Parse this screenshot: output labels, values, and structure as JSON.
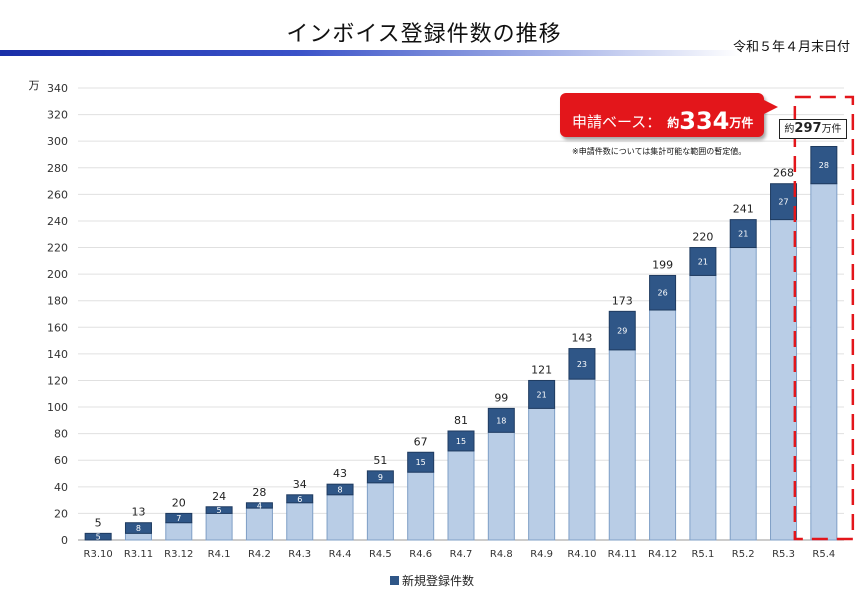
{
  "header": {
    "title": "インボイス登録件数の推移",
    "date_note": "令和５年４月末日付"
  },
  "callout": {
    "prefix": "申請ベース：",
    "approx": "約",
    "number": "334",
    "unit": "万件"
  },
  "approx_box": {
    "approx": "約",
    "number": "297",
    "unit": "万件"
  },
  "footnote": "※申請件数については集計可能な範囲の暫定値。",
  "colors": {
    "base": "#b9cde6",
    "increment": "#2f5687",
    "callout": "#e3161b",
    "highlight_dash": "#e3161b"
  },
  "chart_data": {
    "type": "bar",
    "stacked": true,
    "ylabel": "万",
    "ylim": [
      0,
      340
    ],
    "yticks": [
      0,
      20,
      40,
      60,
      80,
      100,
      120,
      140,
      160,
      180,
      200,
      220,
      240,
      260,
      280,
      300,
      320,
      340
    ],
    "grid": true,
    "categories": [
      "R3.10",
      "R3.11",
      "R3.12",
      "R4.1",
      "R4.2",
      "R4.3",
      "R4.4",
      "R4.5",
      "R4.6",
      "R4.7",
      "R4.8",
      "R4.9",
      "R4.10",
      "R4.11",
      "R4.12",
      "R5.1",
      "R5.2",
      "R5.3",
      "R5.4"
    ],
    "series": [
      {
        "values": [
          0,
          5,
          13,
          20,
          24,
          28,
          34,
          43,
          51,
          67,
          81,
          99,
          121,
          143,
          173,
          199,
          220,
          241,
          268
        ]
      },
      {
        "name": "新規登録件数",
        "values": [
          5,
          8,
          7,
          5,
          4,
          6,
          8,
          9,
          15,
          15,
          18,
          21,
          23,
          29,
          26,
          21,
          21,
          27,
          28
        ]
      }
    ],
    "totals": [
      "5",
      "13",
      "20",
      "24",
      "28",
      "34",
      "43",
      "51",
      "67",
      "81",
      "99",
      "121",
      "143",
      "173",
      "199",
      "220",
      "241",
      "268",
      ""
    ],
    "legend": [
      "新規登録件数"
    ],
    "legend_position": "bottom",
    "highlight_category": "R5.4"
  }
}
